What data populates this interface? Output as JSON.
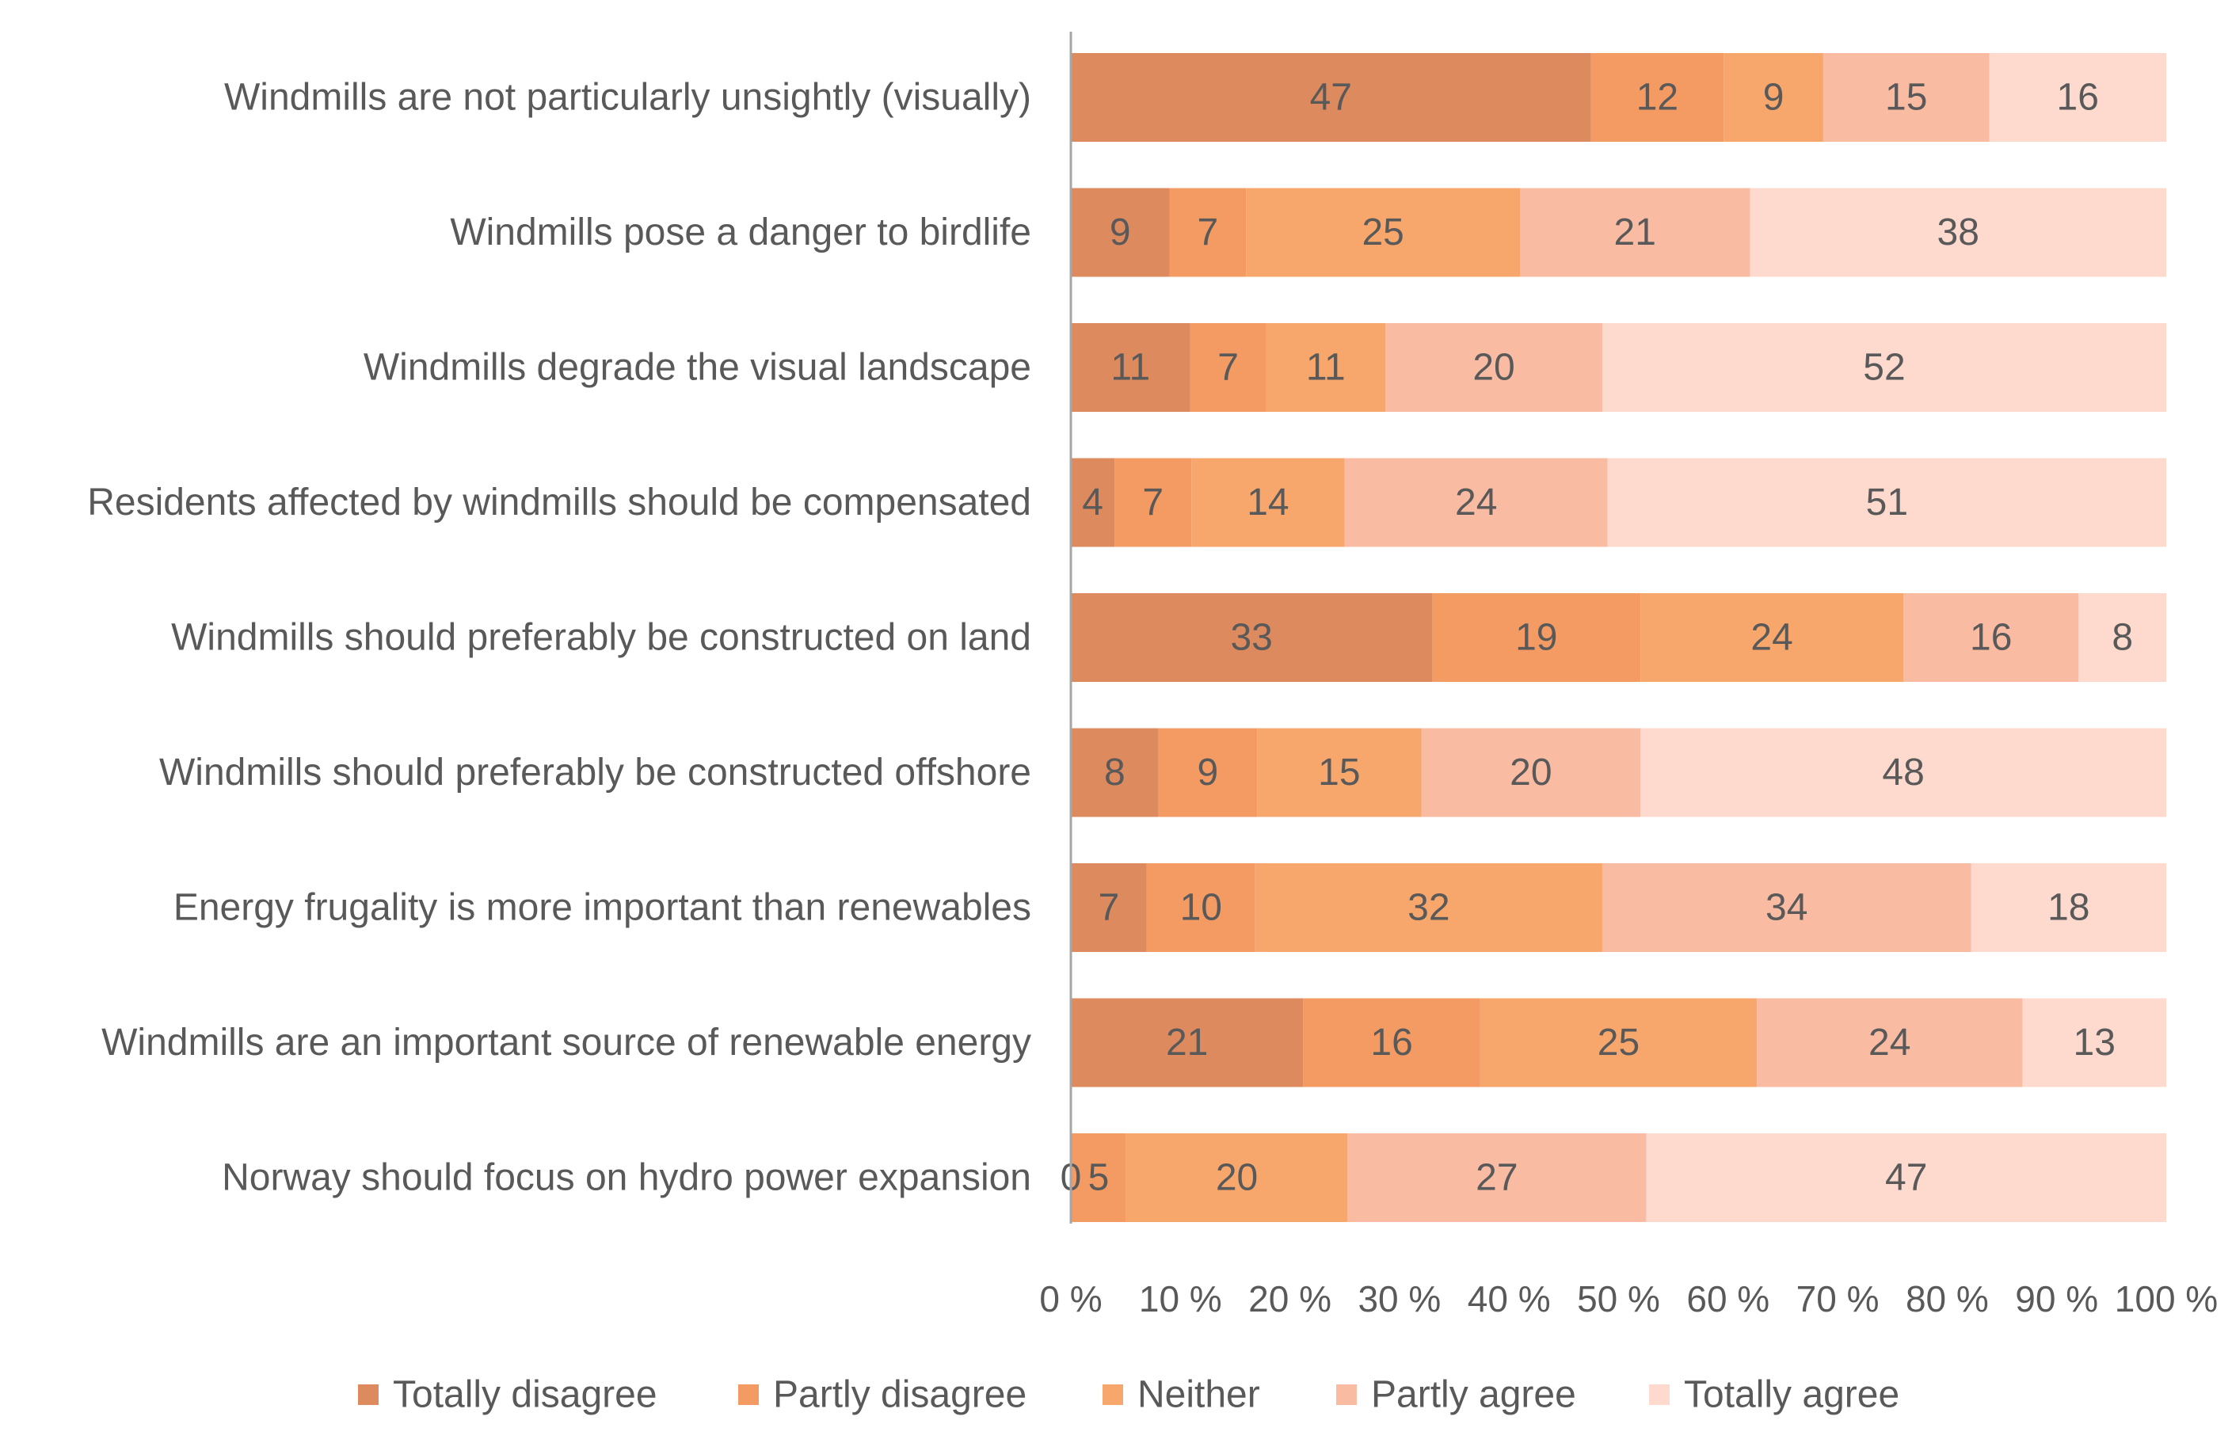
{
  "chart_data": {
    "type": "bar",
    "orientation": "horizontal",
    "stacked": "percent",
    "title": "",
    "xlabel": "",
    "ylabel": "",
    "xlim": [
      0,
      100
    ],
    "legend_position": "bottom",
    "categories": [
      "Windmills are not particularly unsightly (visually)",
      "Windmills pose a danger to birdlife",
      "Windmills  degrade the visual landscape",
      "Residents affected by windmills should be compensated",
      "Windmills should preferably be constructed on land",
      "Windmills should preferably be constructed offshore",
      "Energy frugality is more important than renewables",
      "Windmills are an important source of renewable energy",
      "Norway should focus on hydro power expansion"
    ],
    "series": [
      {
        "name": "Totally disagree",
        "color": "#DD8A5E",
        "values": [
          47,
          9,
          11,
          4,
          33,
          8,
          7,
          21,
          0
        ]
      },
      {
        "name": "Partly disagree",
        "color": "#F39B63",
        "values": [
          12,
          7,
          7,
          7,
          19,
          9,
          10,
          16,
          5
        ]
      },
      {
        "name": "Neither",
        "color": "#F7A76C",
        "values": [
          9,
          25,
          11,
          14,
          24,
          15,
          32,
          25,
          20
        ]
      },
      {
        "name": "Partly agree",
        "color": "#FABBA3",
        "values": [
          15,
          21,
          20,
          24,
          16,
          20,
          34,
          24,
          27
        ]
      },
      {
        "name": "Totally agree",
        "color": "#FDD9CE",
        "values": [
          16,
          38,
          52,
          51,
          8,
          48,
          18,
          13,
          47
        ]
      }
    ],
    "x_ticks": [
      "0 %",
      "10 %",
      "20 %",
      "30 %",
      "40 %",
      "50 %",
      "60 %",
      "70 %",
      "80 %",
      "90 %",
      "100 %"
    ]
  }
}
